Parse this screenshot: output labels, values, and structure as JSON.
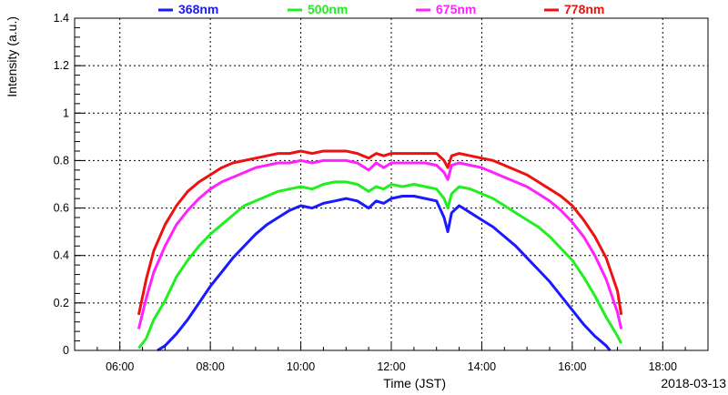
{
  "chart_data": {
    "type": "line",
    "title": "",
    "xlabel": "Time (JST)",
    "ylabel": "Intensity (a.u.)",
    "date_label": "2018-03-13",
    "xlim": [
      "05:00",
      "19:00"
    ],
    "ylim": [
      0,
      1.4
    ],
    "x_ticks": [
      "06:00",
      "08:00",
      "10:00",
      "12:00",
      "14:00",
      "16:00",
      "18:00"
    ],
    "y_ticks": [
      "0",
      "0.2",
      "0.4",
      "0.6",
      "0.8",
      "1",
      "1.2",
      "1.4"
    ],
    "grid": true,
    "legend_position": "top",
    "series": [
      {
        "name": "368nm",
        "color": "#1a1aff",
        "x": [
          "06:50",
          "07:00",
          "07:15",
          "07:30",
          "07:45",
          "08:00",
          "08:15",
          "08:30",
          "08:45",
          "09:00",
          "09:15",
          "09:30",
          "09:45",
          "10:00",
          "10:15",
          "10:30",
          "10:45",
          "11:00",
          "11:15",
          "11:30",
          "11:40",
          "11:50",
          "12:00",
          "12:15",
          "12:30",
          "12:45",
          "13:00",
          "13:10",
          "13:15",
          "13:20",
          "13:30",
          "13:45",
          "14:00",
          "14:15",
          "14:30",
          "14:45",
          "15:00",
          "15:15",
          "15:30",
          "15:45",
          "16:00",
          "16:15",
          "16:30",
          "16:45",
          "16:50"
        ],
        "values": [
          0.0,
          0.02,
          0.07,
          0.13,
          0.2,
          0.27,
          0.33,
          0.39,
          0.44,
          0.49,
          0.53,
          0.56,
          0.59,
          0.61,
          0.6,
          0.62,
          0.63,
          0.64,
          0.63,
          0.6,
          0.63,
          0.62,
          0.64,
          0.65,
          0.65,
          0.64,
          0.63,
          0.56,
          0.5,
          0.58,
          0.61,
          0.58,
          0.55,
          0.52,
          0.48,
          0.44,
          0.39,
          0.34,
          0.29,
          0.23,
          0.17,
          0.11,
          0.06,
          0.02,
          0.0
        ]
      },
      {
        "name": "500nm",
        "color": "#22ee22",
        "x": [
          "06:25",
          "06:35",
          "06:45",
          "07:00",
          "07:15",
          "07:30",
          "07:45",
          "08:00",
          "08:15",
          "08:30",
          "08:45",
          "09:00",
          "09:15",
          "09:30",
          "09:45",
          "10:00",
          "10:15",
          "10:30",
          "10:45",
          "11:00",
          "11:15",
          "11:30",
          "11:40",
          "11:50",
          "12:00",
          "12:15",
          "12:30",
          "12:45",
          "13:00",
          "13:10",
          "13:15",
          "13:20",
          "13:30",
          "13:45",
          "14:00",
          "14:15",
          "14:30",
          "14:45",
          "15:00",
          "15:15",
          "15:30",
          "15:45",
          "16:00",
          "16:15",
          "16:30",
          "16:45",
          "17:00",
          "17:05"
        ],
        "values": [
          0.01,
          0.05,
          0.13,
          0.21,
          0.31,
          0.38,
          0.44,
          0.49,
          0.53,
          0.57,
          0.61,
          0.63,
          0.65,
          0.67,
          0.68,
          0.69,
          0.68,
          0.7,
          0.71,
          0.71,
          0.7,
          0.67,
          0.69,
          0.68,
          0.7,
          0.69,
          0.7,
          0.69,
          0.68,
          0.64,
          0.6,
          0.66,
          0.69,
          0.68,
          0.66,
          0.64,
          0.61,
          0.58,
          0.55,
          0.52,
          0.48,
          0.43,
          0.38,
          0.31,
          0.23,
          0.14,
          0.06,
          0.03
        ]
      },
      {
        "name": "675nm",
        "color": "#ff22ff",
        "x": [
          "06:25",
          "06:35",
          "06:45",
          "07:00",
          "07:15",
          "07:30",
          "07:45",
          "08:00",
          "08:15",
          "08:30",
          "08:45",
          "09:00",
          "09:15",
          "09:30",
          "09:45",
          "10:00",
          "10:15",
          "10:30",
          "10:45",
          "11:00",
          "11:15",
          "11:30",
          "11:40",
          "11:50",
          "12:00",
          "12:15",
          "12:30",
          "12:45",
          "13:00",
          "13:10",
          "13:15",
          "13:20",
          "13:30",
          "13:45",
          "14:00",
          "14:15",
          "14:30",
          "14:45",
          "15:00",
          "15:15",
          "15:30",
          "15:45",
          "16:00",
          "16:15",
          "16:30",
          "16:45",
          "17:00",
          "17:05"
        ],
        "values": [
          0.09,
          0.22,
          0.33,
          0.44,
          0.53,
          0.59,
          0.64,
          0.68,
          0.71,
          0.73,
          0.75,
          0.77,
          0.78,
          0.79,
          0.79,
          0.8,
          0.79,
          0.8,
          0.8,
          0.8,
          0.79,
          0.76,
          0.79,
          0.77,
          0.79,
          0.79,
          0.79,
          0.79,
          0.78,
          0.75,
          0.72,
          0.78,
          0.79,
          0.78,
          0.77,
          0.75,
          0.73,
          0.71,
          0.69,
          0.66,
          0.63,
          0.59,
          0.54,
          0.48,
          0.4,
          0.3,
          0.16,
          0.09
        ]
      },
      {
        "name": "778nm",
        "color": "#ee1111",
        "x": [
          "06:25",
          "06:35",
          "06:45",
          "07:00",
          "07:15",
          "07:30",
          "07:45",
          "08:00",
          "08:15",
          "08:30",
          "08:45",
          "09:00",
          "09:15",
          "09:30",
          "09:45",
          "10:00",
          "10:15",
          "10:30",
          "10:45",
          "11:00",
          "11:15",
          "11:30",
          "11:40",
          "11:50",
          "12:00",
          "12:15",
          "12:30",
          "12:45",
          "13:00",
          "13:10",
          "13:15",
          "13:20",
          "13:30",
          "13:45",
          "14:00",
          "14:15",
          "14:30",
          "14:45",
          "15:00",
          "15:15",
          "15:30",
          "15:45",
          "16:00",
          "16:15",
          "16:30",
          "16:45",
          "17:00",
          "17:05"
        ],
        "values": [
          0.15,
          0.3,
          0.42,
          0.53,
          0.61,
          0.67,
          0.71,
          0.74,
          0.77,
          0.79,
          0.8,
          0.81,
          0.82,
          0.83,
          0.83,
          0.84,
          0.83,
          0.84,
          0.84,
          0.84,
          0.83,
          0.81,
          0.83,
          0.82,
          0.83,
          0.83,
          0.83,
          0.83,
          0.83,
          0.8,
          0.77,
          0.82,
          0.83,
          0.82,
          0.81,
          0.8,
          0.78,
          0.76,
          0.74,
          0.71,
          0.68,
          0.65,
          0.61,
          0.55,
          0.48,
          0.39,
          0.25,
          0.15
        ]
      }
    ]
  }
}
